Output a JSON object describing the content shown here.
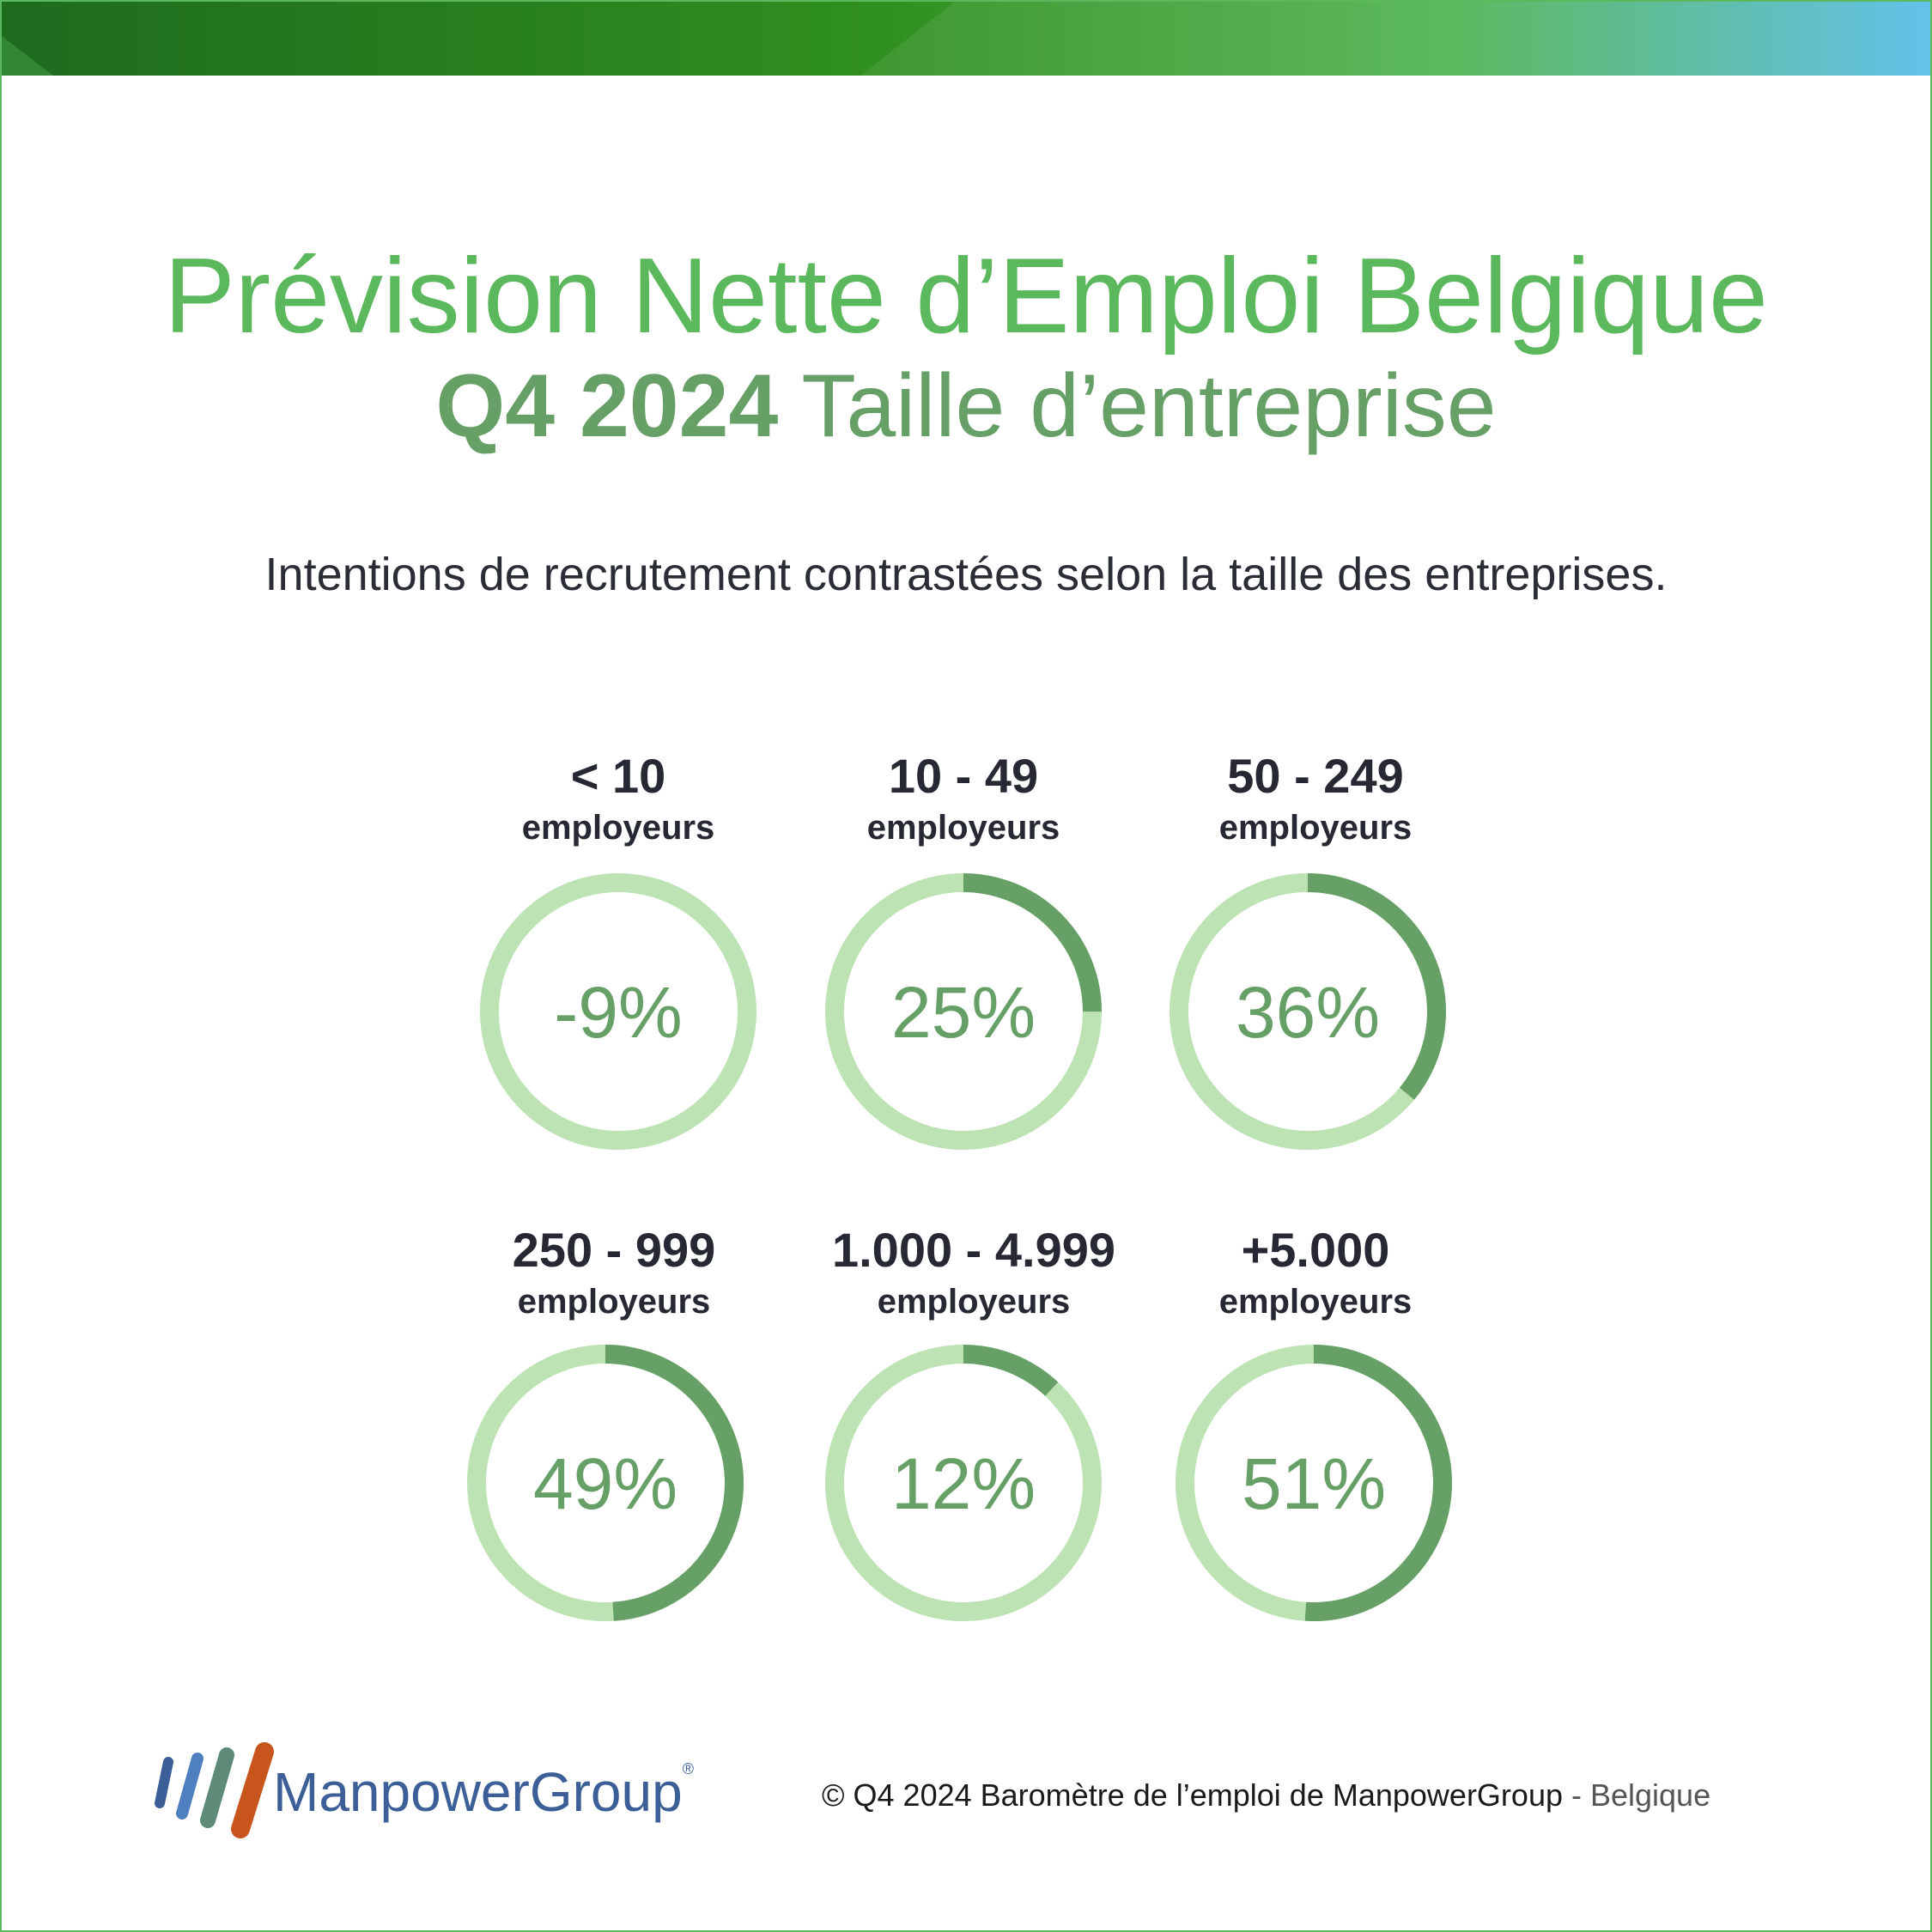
{
  "header": {
    "title_line1": "Prévision Nette d’Emploi Belgique",
    "title_line2_bold": "Q4 2024",
    "title_line2_rest": " Taille d’entreprise",
    "subtitle": "Intentions de recrutement contrastées selon la taille des entreprises."
  },
  "colors": {
    "accent_green": "#5cb85c",
    "donut_track": "#bde3b4",
    "donut_fill": "#66a066",
    "text_dark": "#262833",
    "brand_blue": "#3c5f98"
  },
  "chart_data": {
    "type": "donut",
    "unit": "%",
    "categories": [
      {
        "range": "< 10",
        "unit": "employeurs",
        "value": -9,
        "label": "-9%"
      },
      {
        "range": "10 - 49",
        "unit": "employeurs",
        "value": 25,
        "label": "25%"
      },
      {
        "range": "50 - 249",
        "unit": "employeurs",
        "value": 36,
        "label": "36%"
      },
      {
        "range": "250 - 999",
        "unit": "employeurs",
        "value": 49,
        "label": "49%"
      },
      {
        "range": "1.000 - 4.999",
        "unit": "employeurs",
        "value": 12,
        "label": "12%"
      },
      {
        "range": "+5.000",
        "unit": "employeurs",
        "value": 51,
        "label": "51%"
      }
    ]
  },
  "footer": {
    "brand": "ManpowerGroup",
    "brand_mark": "®",
    "copyright": "© Q4 2024 Baromètre de l’emploi de ManpowerGroup",
    "country": " - Belgique"
  }
}
